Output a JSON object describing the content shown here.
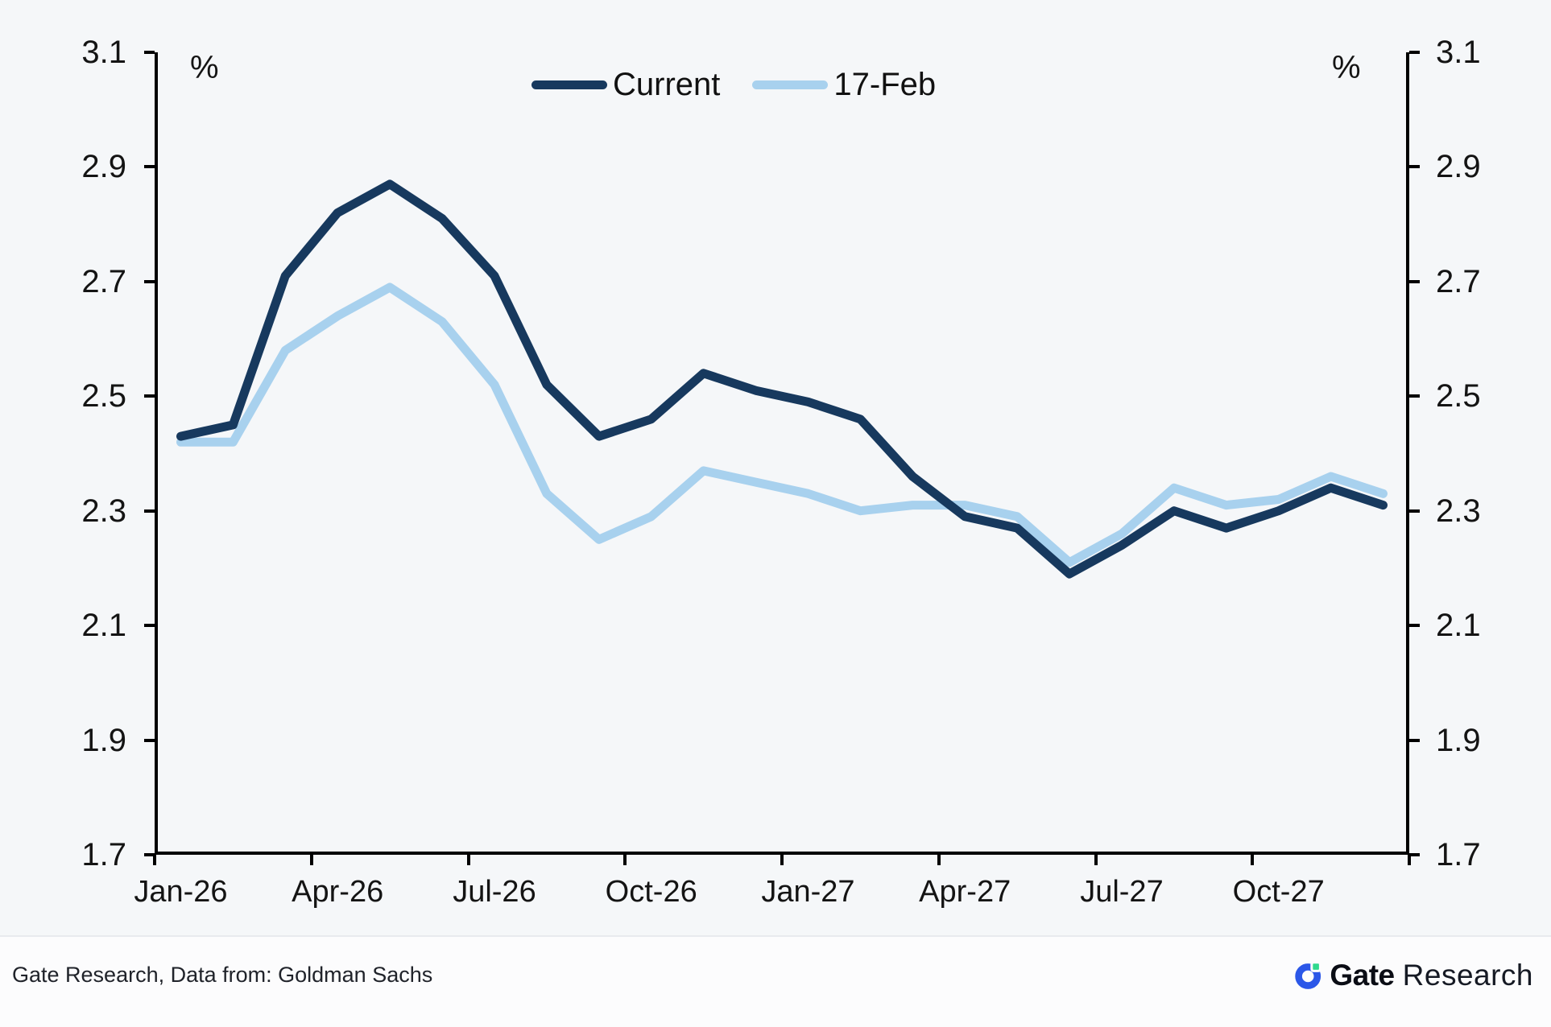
{
  "chart": {
    "legend": {
      "items": [
        {
          "label": "Current",
          "color": "#17395e"
        },
        {
          "label": "17-Feb",
          "color": "#a8d1ee"
        }
      ]
    },
    "axes": {
      "unit_left": "%",
      "unit_right": "%",
      "yticks": [
        "3.1",
        "2.9",
        "2.7",
        "2.5",
        "2.3",
        "2.1",
        "1.9",
        "1.7"
      ],
      "xticks": [
        "Jan-26",
        "Apr-26",
        "Jul-26",
        "Oct-26",
        "Jan-27",
        "Apr-27",
        "Jul-27",
        "Oct-27"
      ]
    }
  },
  "chart_data": {
    "type": "line",
    "x": [
      "Jan-26",
      "Feb-26",
      "Mar-26",
      "Apr-26",
      "May-26",
      "Jun-26",
      "Jul-26",
      "Aug-26",
      "Sep-26",
      "Oct-26",
      "Nov-26",
      "Dec-26",
      "Jan-27",
      "Feb-27",
      "Mar-27",
      "Apr-27",
      "May-27",
      "Jun-27",
      "Jul-27",
      "Aug-27",
      "Sep-27",
      "Oct-27",
      "Nov-27",
      "Dec-27"
    ],
    "series": [
      {
        "name": "Current",
        "color": "#17395e",
        "values": [
          2.43,
          2.45,
          2.71,
          2.82,
          2.87,
          2.81,
          2.71,
          2.52,
          2.43,
          2.46,
          2.54,
          2.51,
          2.49,
          2.46,
          2.36,
          2.29,
          2.27,
          2.19,
          2.24,
          2.3,
          2.27,
          2.3,
          2.34,
          2.31
        ]
      },
      {
        "name": "17-Feb",
        "color": "#a8d1ee",
        "values": [
          2.42,
          2.42,
          2.58,
          2.64,
          2.69,
          2.63,
          2.52,
          2.33,
          2.25,
          2.29,
          2.37,
          2.35,
          2.33,
          2.3,
          2.31,
          2.31,
          2.29,
          2.21,
          2.26,
          2.34,
          2.31,
          2.32,
          2.36,
          2.33
        ]
      }
    ],
    "title": "",
    "xlabel": "",
    "ylabel": "%",
    "ylim": [
      1.7,
      3.1
    ],
    "ytick_step": 0.2,
    "grid": false,
    "legend_position": "top-center"
  },
  "footer": {
    "source": "Gate Research, Data from: Goldman Sachs",
    "logo": {
      "brand": "Gate",
      "suffix": "Research",
      "blue": "#2b57e8",
      "green": "#2fd98d"
    }
  }
}
